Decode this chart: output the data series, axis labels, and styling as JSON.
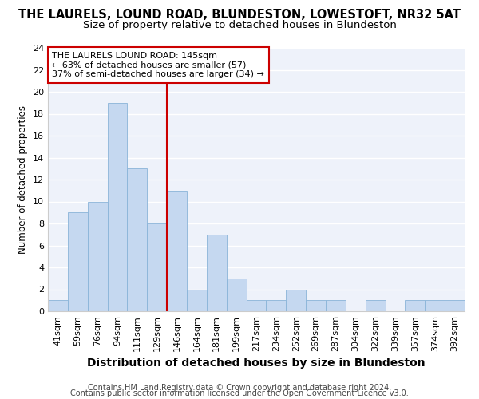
{
  "title": "THE LAURELS, LOUND ROAD, BLUNDESTON, LOWESTOFT, NR32 5AT",
  "subtitle": "Size of property relative to detached houses in Blundeston",
  "xlabel": "Distribution of detached houses by size in Blundeston",
  "ylabel": "Number of detached properties",
  "bar_labels": [
    "41sqm",
    "59sqm",
    "76sqm",
    "94sqm",
    "111sqm",
    "129sqm",
    "146sqm",
    "164sqm",
    "181sqm",
    "199sqm",
    "217sqm",
    "234sqm",
    "252sqm",
    "269sqm",
    "287sqm",
    "304sqm",
    "322sqm",
    "339sqm",
    "357sqm",
    "374sqm",
    "392sqm"
  ],
  "bar_heights": [
    1,
    9,
    10,
    19,
    13,
    8,
    11,
    2,
    7,
    3,
    1,
    1,
    2,
    1,
    1,
    0,
    1,
    0,
    1,
    1,
    1
  ],
  "bar_color": "#c5d8f0",
  "bar_edge_color": "#8ab4d8",
  "vline_x": 6,
  "vline_color": "#cc0000",
  "annotation_line1": "THE LAURELS LOUND ROAD: 145sqm",
  "annotation_line2": "← 63% of detached houses are smaller (57)",
  "annotation_line3": "37% of semi-detached houses are larger (34) →",
  "annotation_box_color": "#cc0000",
  "ylim": [
    0,
    24
  ],
  "yticks": [
    0,
    2,
    4,
    6,
    8,
    10,
    12,
    14,
    16,
    18,
    20,
    22,
    24
  ],
  "footer_line1": "Contains HM Land Registry data © Crown copyright and database right 2024.",
  "footer_line2": "Contains public sector information licensed under the Open Government Licence v3.0.",
  "bg_color": "#eef2fa",
  "grid_color": "#ffffff",
  "title_fontsize": 10.5,
  "subtitle_fontsize": 9.5,
  "xlabel_fontsize": 10,
  "ylabel_fontsize": 8.5,
  "tick_fontsize": 8,
  "annotation_fontsize": 8,
  "footer_fontsize": 7
}
